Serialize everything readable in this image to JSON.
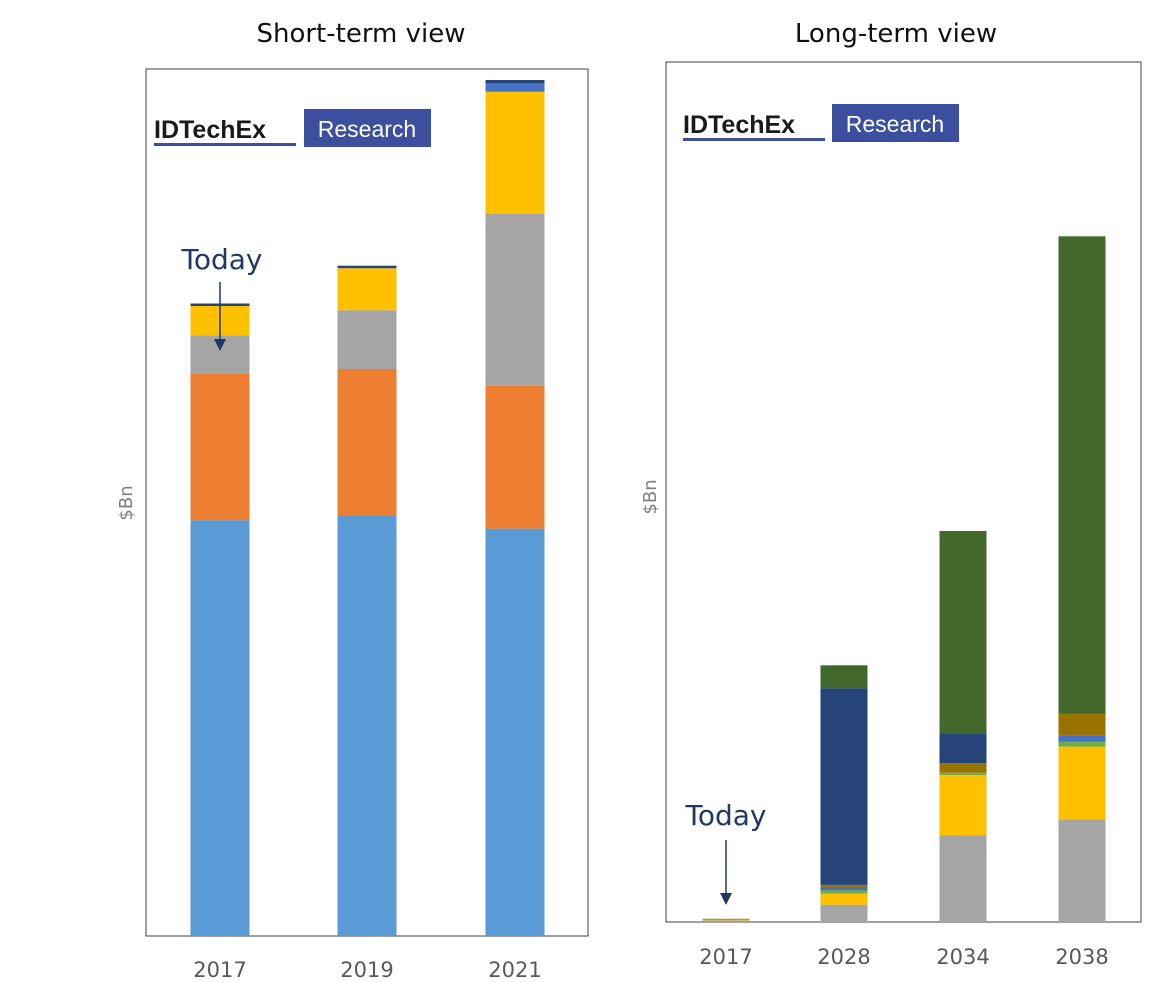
{
  "logo": {
    "main_text": "IDTechEx",
    "sub_text": "Research",
    "box_color": "#3c4f9e",
    "underline_color": "#3c4f9e"
  },
  "annotation_color": "#1f3864",
  "chart_data": [
    {
      "type": "bar",
      "stacked": true,
      "title": "Short-term view",
      "ylabel": "$Bn",
      "xlabel": "",
      "categories": [
        "2017",
        "2019",
        "2021"
      ],
      "ylim": [
        0,
        100
      ],
      "y_ticks_shown": false,
      "grid": false,
      "legend": "none",
      "annotation": {
        "text": "Today",
        "category": "2017"
      },
      "series": [
        {
          "color": "#5b9bd5",
          "values": [
            49.5,
            50.0,
            48.5
          ]
        },
        {
          "color": "#ed7d31",
          "values": [
            17.5,
            17.5,
            17.0
          ]
        },
        {
          "color": "#a5a5a5",
          "values": [
            4.5,
            7.0,
            20.5
          ]
        },
        {
          "color": "#ffc000",
          "values": [
            3.5,
            5.0,
            14.5
          ]
        },
        {
          "color": "#4472c4",
          "values": [
            0.0,
            0.0,
            1.0
          ]
        },
        {
          "color": "#264478",
          "values": [
            0.3,
            0.3,
            0.4
          ]
        }
      ]
    },
    {
      "type": "bar",
      "stacked": true,
      "title": "Long-term view",
      "ylabel": "$Bn",
      "xlabel": "",
      "categories": [
        "2017",
        "2028",
        "2034",
        "2038"
      ],
      "ylim": [
        0,
        100
      ],
      "y_ticks_shown": false,
      "grid": false,
      "legend": "none",
      "annotation": {
        "text": "Today",
        "category": "2017"
      },
      "series": [
        {
          "color": "#a5a5a5",
          "values": [
            0.2,
            2.2,
            11.0,
            13.0
          ]
        },
        {
          "color": "#ffc000",
          "values": [
            0.1,
            1.4,
            7.6,
            9.2
          ]
        },
        {
          "color": "#70ad47",
          "values": [
            0.0,
            0.4,
            0.3,
            0.6
          ]
        },
        {
          "color": "#4472c4",
          "values": [
            0.0,
            0.3,
            0.0,
            0.8
          ]
        },
        {
          "color": "#997300",
          "values": [
            0.1,
            0.4,
            1.2,
            2.8
          ]
        },
        {
          "color": "#264478",
          "values": [
            0.0,
            24.9,
            3.7,
            0.0
          ]
        },
        {
          "color": "#43682b",
          "values": [
            0.0,
            2.9,
            25.7,
            60.4
          ]
        }
      ]
    }
  ]
}
